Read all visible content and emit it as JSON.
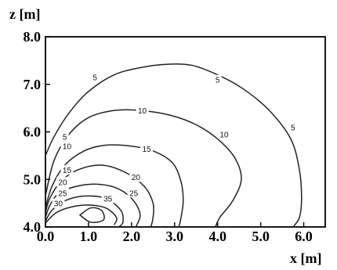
{
  "chart_data": {
    "type": "contour",
    "xlabel": "x [m]",
    "ylabel": "z [m]",
    "xlim": [
      0.0,
      6.5
    ],
    "ylim": [
      4.0,
      8.0
    ],
    "xticks": [
      "0.0",
      "1.0",
      "2.0",
      "3.0",
      "4.0",
      "5.0",
      "6.0"
    ],
    "yticks": [
      "4.0",
      "5.0",
      "6.0",
      "7.0",
      "8.0"
    ],
    "grid": false,
    "contours": [
      {
        "level": "5",
        "label_at": [
          1.15,
          7.15
        ],
        "label_at_2": [
          4.0,
          7.1
        ],
        "label_at_3": [
          5.75,
          6.1
        ],
        "label_at_4": [
          0.45,
          5.9
        ],
        "points": [
          [
            0.0,
            5.5
          ],
          [
            0.2,
            5.9
          ],
          [
            0.55,
            6.4
          ],
          [
            1.0,
            6.85
          ],
          [
            1.6,
            7.2
          ],
          [
            2.2,
            7.35
          ],
          [
            2.8,
            7.42
          ],
          [
            3.4,
            7.4
          ],
          [
            4.0,
            7.2
          ],
          [
            4.6,
            6.9
          ],
          [
            5.2,
            6.45
          ],
          [
            5.7,
            5.85
          ],
          [
            5.9,
            5.2
          ],
          [
            5.95,
            4.6
          ],
          [
            5.9,
            4.2
          ],
          [
            5.75,
            4.0
          ]
        ]
      },
      {
        "level": "10",
        "label_at": [
          2.25,
          6.45
        ],
        "label_at_2": [
          4.15,
          5.95
        ],
        "label_at_3": [
          0.5,
          5.7
        ],
        "points": [
          [
            0.0,
            4.65
          ],
          [
            0.2,
            5.4
          ],
          [
            0.55,
            5.95
          ],
          [
            1.0,
            6.3
          ],
          [
            1.6,
            6.45
          ],
          [
            2.2,
            6.45
          ],
          [
            2.9,
            6.35
          ],
          [
            3.5,
            6.15
          ],
          [
            4.0,
            5.85
          ],
          [
            4.4,
            5.45
          ],
          [
            4.55,
            5.0
          ],
          [
            4.35,
            4.55
          ],
          [
            4.05,
            4.2
          ],
          [
            3.95,
            4.0
          ]
        ]
      },
      {
        "level": "15",
        "label_at": [
          2.35,
          5.65
        ],
        "label_at_2": [
          0.5,
          5.2
        ],
        "points": [
          [
            0.0,
            4.4
          ],
          [
            0.15,
            4.85
          ],
          [
            0.45,
            5.3
          ],
          [
            0.9,
            5.6
          ],
          [
            1.4,
            5.72
          ],
          [
            2.0,
            5.7
          ],
          [
            2.5,
            5.6
          ],
          [
            2.95,
            5.35
          ],
          [
            3.15,
            4.95
          ],
          [
            3.2,
            4.55
          ],
          [
            3.15,
            4.2
          ],
          [
            3.1,
            4.0
          ]
        ]
      },
      {
        "level": "20",
        "label_at": [
          2.1,
          5.05
        ],
        "label_at_2": [
          0.4,
          4.95
        ],
        "points": [
          [
            0.0,
            4.3
          ],
          [
            0.1,
            4.6
          ],
          [
            0.35,
            4.95
          ],
          [
            0.75,
            5.2
          ],
          [
            1.3,
            5.3
          ],
          [
            1.85,
            5.15
          ],
          [
            2.3,
            4.85
          ],
          [
            2.5,
            4.5
          ],
          [
            2.5,
            4.2
          ],
          [
            2.45,
            4.0
          ]
        ]
      },
      {
        "level": "25",
        "label_at": [
          2.05,
          4.72
        ],
        "label_at_2": [
          0.4,
          4.72
        ],
        "points": [
          [
            0.0,
            4.2
          ],
          [
            0.1,
            4.45
          ],
          [
            0.3,
            4.7
          ],
          [
            0.7,
            4.85
          ],
          [
            1.2,
            4.9
          ],
          [
            1.7,
            4.8
          ],
          [
            2.05,
            4.55
          ],
          [
            2.2,
            4.25
          ],
          [
            2.1,
            4.0
          ]
        ]
      },
      {
        "level": "30",
        "label_at": [
          0.3,
          4.5
        ],
        "points": [
          [
            0.0,
            4.12
          ],
          [
            0.15,
            4.35
          ],
          [
            0.45,
            4.55
          ],
          [
            0.9,
            4.65
          ],
          [
            1.4,
            4.6
          ],
          [
            1.75,
            4.35
          ],
          [
            1.8,
            4.1
          ],
          [
            1.7,
            4.0
          ]
        ]
      },
      {
        "level": "35",
        "label_at": [
          1.45,
          4.6
        ],
        "points": [
          [
            0.0,
            4.08
          ],
          [
            0.25,
            4.3
          ],
          [
            0.6,
            4.42
          ],
          [
            1.0,
            4.46
          ],
          [
            1.4,
            4.4
          ],
          [
            1.65,
            4.2
          ],
          [
            1.6,
            4.05
          ]
        ]
      },
      {
        "level": "",
        "points": [
          [
            0.8,
            4.25
          ],
          [
            1.05,
            4.4
          ],
          [
            1.3,
            4.35
          ],
          [
            1.35,
            4.15
          ],
          [
            1.05,
            4.1
          ],
          [
            0.8,
            4.25
          ]
        ]
      }
    ]
  }
}
